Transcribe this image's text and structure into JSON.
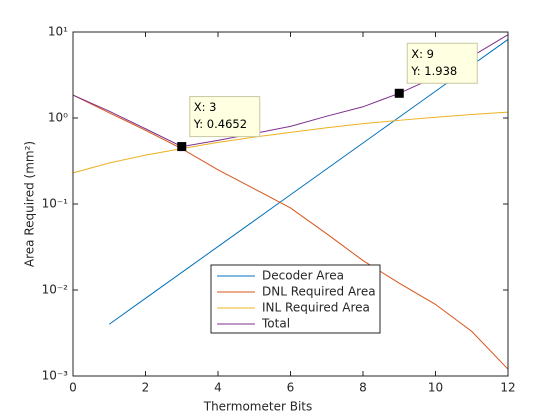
{
  "chart_data": {
    "type": "line",
    "xlabel": "Thermometer Bits",
    "ylabel": "Area Required (mm²)",
    "x": [
      0,
      1,
      2,
      3,
      4,
      5,
      6,
      7,
      8,
      9,
      10,
      11,
      12
    ],
    "series": [
      {
        "name": "Decoder Area",
        "color": "#0072BD",
        "values": [
          null,
          0.004,
          0.008,
          0.016,
          0.032,
          0.064,
          0.128,
          0.256,
          0.512,
          1.024,
          2.048,
          4.096,
          8.192
        ]
      },
      {
        "name": "DNL Required Area",
        "color": "#D95319",
        "values": [
          1.85,
          1.15,
          0.72,
          0.44,
          0.25,
          0.15,
          0.09,
          0.045,
          0.022,
          0.012,
          0.0068,
          0.0033,
          0.0012
        ]
      },
      {
        "name": "INL Required Area",
        "color": "#EDB120",
        "values": [
          0.23,
          0.3,
          0.37,
          0.44,
          0.52,
          0.6,
          0.68,
          0.77,
          0.86,
          0.94,
          1.02,
          1.1,
          1.17
        ]
      },
      {
        "name": "Total",
        "color": "#7E2F8E",
        "values": [
          1.85,
          1.2,
          0.75,
          0.4652,
          0.55,
          0.66,
          0.8,
          1.05,
          1.35,
          1.938,
          3.0,
          5.2,
          9.3
        ]
      }
    ],
    "xlim": [
      0,
      12
    ],
    "xticks": [
      0,
      2,
      4,
      6,
      8,
      10,
      12
    ],
    "ylim": [
      0.001,
      10
    ],
    "ylog": true,
    "yticks": [
      {
        "value": 0.001,
        "label": "10⁻³"
      },
      {
        "value": 0.01,
        "label": "10⁻²"
      },
      {
        "value": 0.1,
        "label": "10⁻¹"
      },
      {
        "value": 1,
        "label": "10⁰"
      },
      {
        "value": 10,
        "label": "10¹"
      }
    ],
    "datatips": [
      {
        "x": 3,
        "y": 0.4652,
        "lines": [
          "X: 3",
          "Y: 0.4652"
        ]
      },
      {
        "x": 9,
        "y": 1.938,
        "lines": [
          "X: 9",
          "Y: 1.938"
        ]
      }
    ]
  }
}
